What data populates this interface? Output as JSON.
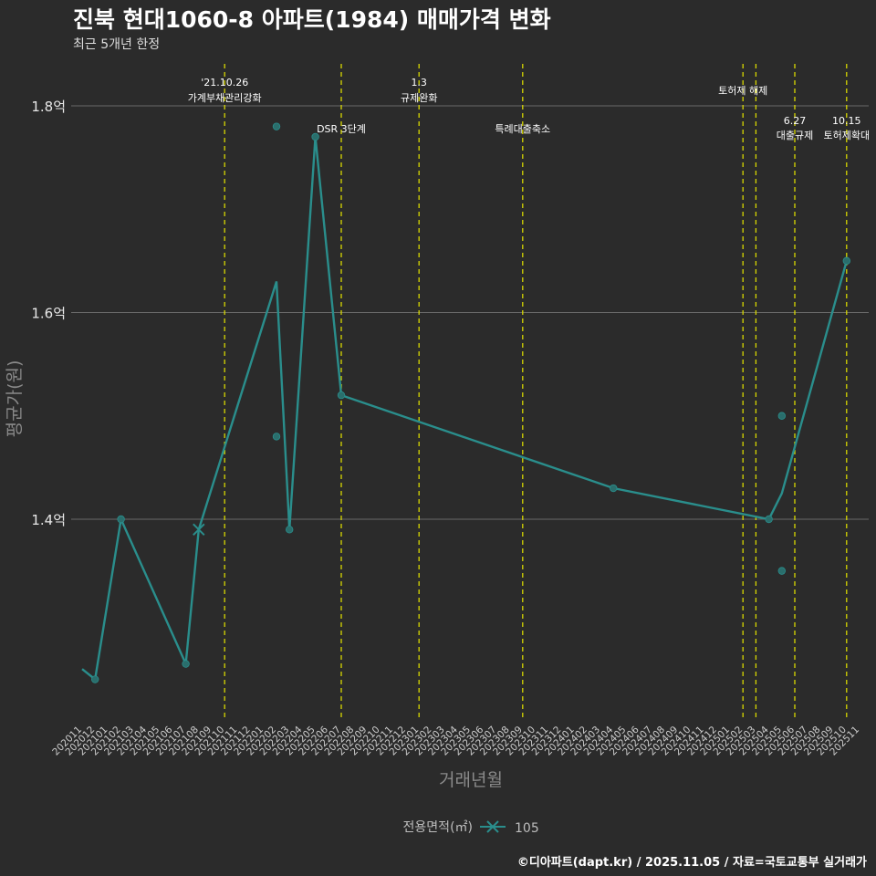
{
  "header": {
    "title": "진북 현대1060-8 아파트(1984) 매매가격 변화",
    "subtitle": "최근 5개년 한정"
  },
  "caption": "©디아파트(dapt.kr) / 2025.11.05 / 자료=국토교통부 실거래가",
  "chart_data": {
    "type": "line",
    "title": "진북 현대1060-8 아파트(1984) 매매가격 변화",
    "xlabel": "거래년월",
    "ylabel": "평균가(원)",
    "ylim": [
      1.2,
      1.85
    ],
    "ytick_values": [
      1.4,
      1.6,
      1.8
    ],
    "ytick_labels": [
      "1.4억",
      "1.6억",
      "1.8억"
    ],
    "grid": true,
    "categories": [
      "202011",
      "202012",
      "202101",
      "202102",
      "202103",
      "202104",
      "202105",
      "202106",
      "202107",
      "202108",
      "202109",
      "202110",
      "202111",
      "202112",
      "202201",
      "202202",
      "202203",
      "202204",
      "202205",
      "202206",
      "202207",
      "202208",
      "202209",
      "202210",
      "202211",
      "202212",
      "202301",
      "202302",
      "202303",
      "202304",
      "202305",
      "202306",
      "202307",
      "202308",
      "202309",
      "202310",
      "202311",
      "202312",
      "202401",
      "202402",
      "202403",
      "202404",
      "202405",
      "202406",
      "202407",
      "202408",
      "202409",
      "202410",
      "202411",
      "202412",
      "202501",
      "202502",
      "202503",
      "202504",
      "202505",
      "202506",
      "202507",
      "202508",
      "202509",
      "202510",
      "202511"
    ],
    "series": [
      {
        "name": "105",
        "color": "#2a8e8c",
        "marker": "x",
        "line_points": [
          {
            "x": "202011",
            "y": 1.255
          },
          {
            "x": "202012",
            "y": 1.245
          },
          {
            "x": "202102",
            "y": 1.4
          },
          {
            "x": "202107",
            "y": 1.26
          },
          {
            "x": "202108",
            "y": 1.39
          },
          {
            "x": "202202",
            "y": 1.63
          },
          {
            "x": "202203",
            "y": 1.39
          },
          {
            "x": "202205",
            "y": 1.77
          },
          {
            "x": "202207",
            "y": 1.52
          },
          {
            "x": "202404",
            "y": 1.43
          },
          {
            "x": "202504",
            "y": 1.4
          },
          {
            "x": "202505",
            "y": 1.425
          },
          {
            "x": "202510",
            "y": 1.65
          }
        ],
        "trade_points": [
          {
            "x": "202012",
            "y": 1.245
          },
          {
            "x": "202102",
            "y": 1.4
          },
          {
            "x": "202107",
            "y": 1.26
          },
          {
            "x": "202202",
            "y": 1.78
          },
          {
            "x": "202202",
            "y": 1.48
          },
          {
            "x": "202203",
            "y": 1.39
          },
          {
            "x": "202205",
            "y": 1.77
          },
          {
            "x": "202207",
            "y": 1.52
          },
          {
            "x": "202404",
            "y": 1.43
          },
          {
            "x": "202504",
            "y": 1.4
          },
          {
            "x": "202505",
            "y": 1.5
          },
          {
            "x": "202505",
            "y": 1.35
          },
          {
            "x": "202510",
            "y": 1.65
          }
        ],
        "cross_marker_at": {
          "x": "202108",
          "y": 1.39
        }
      }
    ],
    "events": [
      {
        "x": "202110",
        "line1": "'21.10.26",
        "line2": "가계부채관리강화",
        "row": "high"
      },
      {
        "x": "202207",
        "line1": "DSR 3단계",
        "line2": "",
        "row": "low"
      },
      {
        "x": "202301",
        "line1": "1.3",
        "line2": "규제완화",
        "row": "high"
      },
      {
        "x": "202309",
        "line1": "특례대출축소",
        "line2": "",
        "row": "low"
      },
      {
        "x": "202502",
        "line1": "토허제 해제",
        "line2": "",
        "row": "mid"
      },
      {
        "x": "202503",
        "line1": "",
        "line2": "",
        "row": "none"
      },
      {
        "x": "202506",
        "line1": "6.27",
        "line2": "대출규제",
        "row": "lower"
      },
      {
        "x": "202510",
        "line1": "10.15",
        "line2": "토허제확대",
        "row": "lower"
      }
    ],
    "legend": {
      "title": "전용면적(㎡)",
      "label": "105",
      "position": "bottom"
    }
  }
}
